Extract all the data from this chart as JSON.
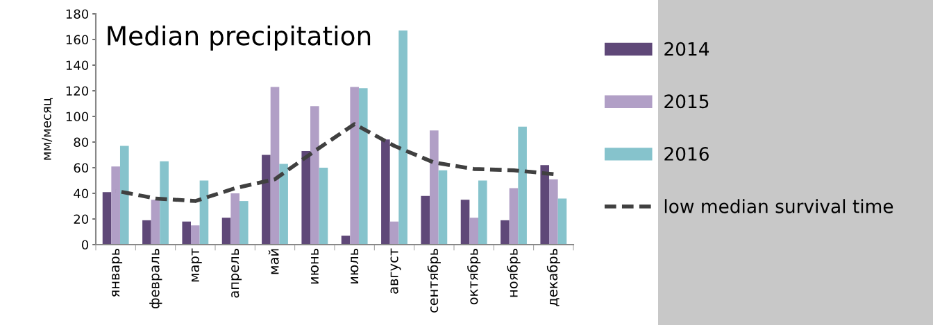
{
  "chart_data": {
    "type": "bar",
    "title": "Median precipitation",
    "ylabel": "мм/месяц",
    "categories": [
      "январь",
      "февраль",
      "март",
      "апрель",
      "май",
      "июнь",
      "июль",
      "август",
      "сентябрь",
      "октябрь",
      "ноябрь",
      "декабрь"
    ],
    "series": [
      {
        "name": "2014",
        "color": "#5f4878",
        "values": [
          41,
          19,
          18,
          21,
          70,
          73,
          7,
          82,
          38,
          35,
          19,
          62
        ]
      },
      {
        "name": "2015",
        "color": "#b19fc6",
        "values": [
          61,
          35,
          15,
          40,
          123,
          108,
          123,
          18,
          89,
          21,
          44,
          51
        ]
      },
      {
        "name": "2016",
        "color": "#86c3cc",
        "values": [
          77,
          65,
          50,
          34,
          63,
          60,
          122,
          167,
          58,
          50,
          92,
          36
        ]
      },
      {
        "name": "low median survival time",
        "type": "line",
        "line_style": "dashed",
        "color": "#404040",
        "values": [
          42,
          36,
          34,
          44,
          51,
          73,
          94,
          77,
          64,
          59,
          58,
          55
        ]
      }
    ],
    "ylim": [
      0,
      180
    ],
    "yticks": [
      0,
      20,
      40,
      60,
      80,
      100,
      120,
      140,
      160,
      180
    ],
    "grid": false,
    "legend": "right"
  }
}
